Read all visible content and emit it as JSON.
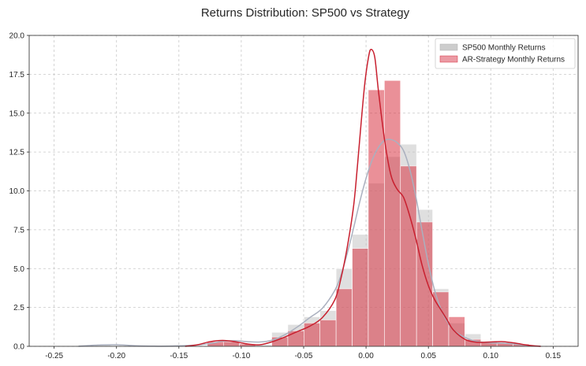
{
  "chart_data": {
    "type": "histogram",
    "title": "Returns Distribution: SP500 vs Strategy",
    "xlabel": "",
    "ylabel": "",
    "xlim": [
      -0.27,
      0.17
    ],
    "ylim": [
      0,
      20
    ],
    "x_ticks": [
      -0.25,
      -0.2,
      -0.15,
      -0.1,
      -0.05,
      0.0,
      0.05,
      0.1,
      0.15
    ],
    "x_tick_labels": [
      "-0.25",
      "-0.20",
      "-0.15",
      "-0.10",
      "-0.05",
      "0.00",
      "0.05",
      "0.10",
      "0.15"
    ],
    "y_ticks": [
      0,
      2.5,
      5,
      7.5,
      10,
      12.5,
      15,
      17.5,
      20
    ],
    "y_tick_labels": [
      "0.0",
      "2.5",
      "5.0",
      "7.5",
      "10.0",
      "12.5",
      "15.0",
      "17.5",
      "20.0"
    ],
    "grid": true,
    "legend_position": "top-right",
    "series": [
      {
        "name": "SP500 Monthly Returns",
        "color": "#b0b0b0",
        "bins": [
          {
            "x0": -0.2305,
            "x1": -0.2176,
            "value": 0.08
          },
          {
            "x0": -0.2176,
            "x1": -0.2047,
            "value": 0.08
          },
          {
            "x0": -0.1272,
            "x1": -0.1143,
            "value": 0.2
          },
          {
            "x0": -0.1143,
            "x1": -0.1014,
            "value": 0.3
          },
          {
            "x0": -0.1014,
            "x1": -0.0885,
            "value": 0.15
          },
          {
            "x0": -0.0885,
            "x1": -0.0756,
            "value": 0.1
          },
          {
            "x0": -0.0756,
            "x1": -0.0627,
            "value": 0.9
          },
          {
            "x0": -0.0627,
            "x1": -0.0498,
            "value": 1.4
          },
          {
            "x0": -0.0498,
            "x1": -0.0369,
            "value": 1.9
          },
          {
            "x0": -0.0369,
            "x1": -0.024,
            "value": 2.3
          },
          {
            "x0": -0.024,
            "x1": -0.0111,
            "value": 5.0
          },
          {
            "x0": -0.0111,
            "x1": 0.0018,
            "value": 7.2
          },
          {
            "x0": 0.0018,
            "x1": 0.0147,
            "value": 10.5
          },
          {
            "x0": 0.0147,
            "x1": 0.0276,
            "value": 12.2
          },
          {
            "x0": 0.0276,
            "x1": 0.0405,
            "value": 13.0
          },
          {
            "x0": 0.0405,
            "x1": 0.0534,
            "value": 8.8
          },
          {
            "x0": 0.0534,
            "x1": 0.0663,
            "value": 3.7
          },
          {
            "x0": 0.0663,
            "x1": 0.0792,
            "value": 1.5
          },
          {
            "x0": 0.0792,
            "x1": 0.0921,
            "value": 0.8
          },
          {
            "x0": 0.0921,
            "x1": 0.105,
            "value": 0.35
          },
          {
            "x0": 0.105,
            "x1": 0.1179,
            "value": 0.2
          },
          {
            "x0": 0.1179,
            "x1": 0.1308,
            "value": 0.1
          }
        ],
        "kde_x": [
          -0.2305,
          -0.215,
          -0.2,
          -0.185,
          -0.17,
          -0.155,
          -0.14,
          -0.125,
          -0.115,
          -0.105,
          -0.095,
          -0.085,
          -0.075,
          -0.065,
          -0.055,
          -0.045,
          -0.035,
          -0.025,
          -0.02,
          -0.015,
          -0.01,
          -0.005,
          0.0,
          0.005,
          0.01,
          0.015,
          0.02,
          0.025,
          0.03,
          0.035,
          0.04,
          0.045,
          0.05,
          0.055,
          0.06,
          0.065,
          0.07,
          0.08,
          0.09,
          0.1,
          0.11,
          0.12,
          0.13,
          0.14
        ],
        "kde_y": [
          0.0,
          0.08,
          0.1,
          0.04,
          0.01,
          0.02,
          0.06,
          0.18,
          0.32,
          0.36,
          0.3,
          0.28,
          0.4,
          0.75,
          1.25,
          1.85,
          2.45,
          3.6,
          4.6,
          6.0,
          7.6,
          9.3,
          10.8,
          12.0,
          12.8,
          13.25,
          13.3,
          13.1,
          12.6,
          11.4,
          9.6,
          7.4,
          5.3,
          3.6,
          2.4,
          1.6,
          1.05,
          0.55,
          0.3,
          0.22,
          0.2,
          0.14,
          0.05,
          0.0
        ]
      },
      {
        "name": "AR-Strategy Monthly Returns",
        "color": "#d62a3a",
        "bins": [
          {
            "x0": -0.1272,
            "x1": -0.1143,
            "value": 0.3
          },
          {
            "x0": -0.1143,
            "x1": -0.1014,
            "value": 0.3
          },
          {
            "x0": -0.1014,
            "x1": -0.0885,
            "value": 0.15
          },
          {
            "x0": -0.0756,
            "x1": -0.0627,
            "value": 0.6
          },
          {
            "x0": -0.0627,
            "x1": -0.0498,
            "value": 1.0
          },
          {
            "x0": -0.0498,
            "x1": -0.0369,
            "value": 1.5
          },
          {
            "x0": -0.0369,
            "x1": -0.024,
            "value": 1.7
          },
          {
            "x0": -0.024,
            "x1": -0.0111,
            "value": 3.7
          },
          {
            "x0": -0.0111,
            "x1": 0.0018,
            "value": 6.3
          },
          {
            "x0": 0.0018,
            "x1": 0.0147,
            "value": 16.5
          },
          {
            "x0": 0.0147,
            "x1": 0.0276,
            "value": 17.1
          },
          {
            "x0": 0.0276,
            "x1": 0.0405,
            "value": 11.6
          },
          {
            "x0": 0.0405,
            "x1": 0.0534,
            "value": 8.0
          },
          {
            "x0": 0.0534,
            "x1": 0.0663,
            "value": 3.5
          },
          {
            "x0": 0.0663,
            "x1": 0.0792,
            "value": 1.9
          },
          {
            "x0": 0.0792,
            "x1": 0.0921,
            "value": 0.45
          },
          {
            "x0": 0.0921,
            "x1": 0.105,
            "value": 0.3
          },
          {
            "x0": 0.105,
            "x1": 0.1179,
            "value": 0.2
          },
          {
            "x0": 0.1179,
            "x1": 0.1308,
            "value": 0.15
          }
        ],
        "kde_x": [
          -0.145,
          -0.135,
          -0.125,
          -0.115,
          -0.105,
          -0.095,
          -0.085,
          -0.075,
          -0.065,
          -0.055,
          -0.045,
          -0.035,
          -0.025,
          -0.02,
          -0.015,
          -0.01,
          -0.007,
          -0.004,
          -0.001,
          0.002,
          0.004,
          0.007,
          0.01,
          0.015,
          0.02,
          0.025,
          0.03,
          0.035,
          0.04,
          0.045,
          0.05,
          0.055,
          0.06,
          0.065,
          0.07,
          0.08,
          0.09,
          0.1,
          0.11,
          0.12,
          0.13,
          0.14
        ],
        "kde_y": [
          0.0,
          0.1,
          0.3,
          0.38,
          0.3,
          0.15,
          0.1,
          0.3,
          0.6,
          0.95,
          1.3,
          1.85,
          3.0,
          4.4,
          6.4,
          9.0,
          11.5,
          14.3,
          16.9,
          18.6,
          19.1,
          18.6,
          16.4,
          13.2,
          11.0,
          10.1,
          9.6,
          8.4,
          6.9,
          5.2,
          3.9,
          3.0,
          2.35,
          1.7,
          1.05,
          0.42,
          0.26,
          0.28,
          0.3,
          0.2,
          0.07,
          0.0
        ]
      }
    ]
  }
}
